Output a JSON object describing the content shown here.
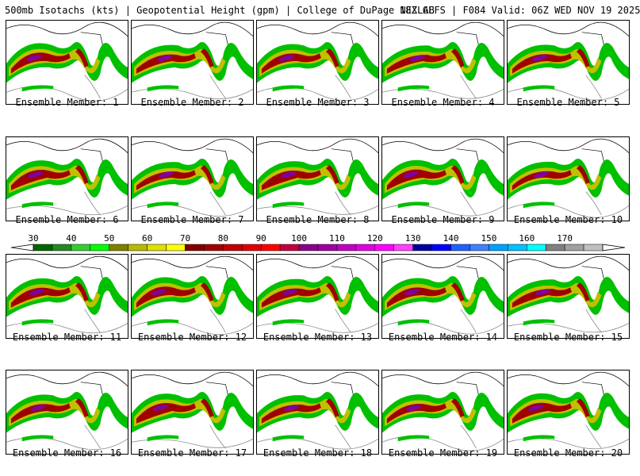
{
  "header": {
    "title": "500mb Isotachs (kts) | Geopotential Height (gpm) | College of DuPage NEXLAB",
    "run": "18Z GEFS | F084 Valid: 06Z WED NOV 19 2025"
  },
  "members": [
    {
      "label": "Ensemble Member: 1"
    },
    {
      "label": "Ensemble Member: 2"
    },
    {
      "label": "Ensemble Member: 3"
    },
    {
      "label": "Ensemble Member: 4"
    },
    {
      "label": "Ensemble Member: 5"
    },
    {
      "label": "Ensemble Member: 6"
    },
    {
      "label": "Ensemble Member: 7"
    },
    {
      "label": "Ensemble Member: 8"
    },
    {
      "label": "Ensemble Member: 9"
    },
    {
      "label": "Ensemble Member: 10"
    },
    {
      "label": "Ensemble Member: 11"
    },
    {
      "label": "Ensemble Member: 12"
    },
    {
      "label": "Ensemble Member: 13"
    },
    {
      "label": "Ensemble Member: 14"
    },
    {
      "label": "Ensemble Member: 15"
    },
    {
      "label": "Ensemble Member: 16"
    },
    {
      "label": "Ensemble Member: 17"
    },
    {
      "label": "Ensemble Member: 18"
    },
    {
      "label": "Ensemble Member: 19"
    },
    {
      "label": "Ensemble Member: 20"
    }
  ],
  "colorbar": {
    "ticks": [
      "30",
      "40",
      "50",
      "60",
      "70",
      "80",
      "90",
      "100",
      "110",
      "120",
      "130",
      "140",
      "150",
      "160",
      "170"
    ],
    "colors": [
      "#006400",
      "#228b22",
      "#32cd32",
      "#00ff00",
      "#808000",
      "#b8b800",
      "#e0e000",
      "#ffff00",
      "#800000",
      "#a00000",
      "#c00000",
      "#e00000",
      "#ff0000",
      "#c00040",
      "#8b008b",
      "#a000a0",
      "#c000c0",
      "#e000e0",
      "#ff00ff",
      "#ff40ff",
      "#0000a0",
      "#0000ff",
      "#2060ff",
      "#4080ff",
      "#00a0ff",
      "#00c0ff",
      "#00ffff",
      "#808080",
      "#a0a0a0",
      "#c0c0c0"
    ]
  },
  "map_colors": {
    "jet_outer": "#00c000",
    "jet_mid": "#c0c000",
    "jet_core": "#a00000",
    "jet_max": "#8000a0",
    "outline": "#000000",
    "height_contour": "#888888"
  }
}
